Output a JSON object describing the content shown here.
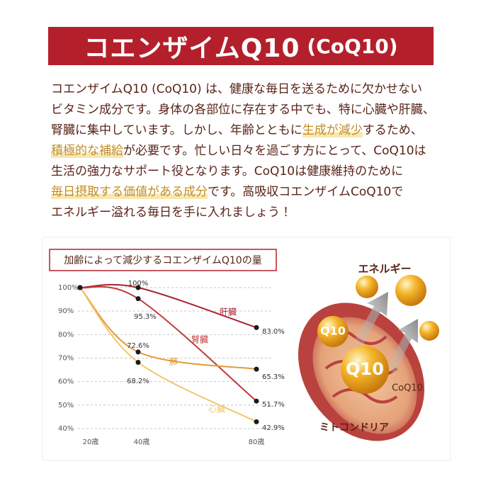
{
  "header": {
    "title": "コエンザイムQ10",
    "subtitle": "(CoQ10)"
  },
  "paragraph": {
    "lines": [
      [
        {
          "text": "コエンザイムQ10 (CoQ10) は、健康な毎日を送るために欠かせない"
        }
      ],
      [
        {
          "text": "ビタミン成分です。身体の各部位に存在する中でも、特に心臓や肝臓、"
        }
      ],
      [
        {
          "text": "腎臓に集中しています。しかし、年齢とともに"
        },
        {
          "text": "生成が減少",
          "emphasis": true
        },
        {
          "text": "するため、"
        }
      ],
      [
        {
          "text": "積極的な補給",
          "emphasis": true
        },
        {
          "text": "が必要です。忙しい日々を過ごす方にとって、CoQ10は"
        }
      ],
      [
        {
          "text": "生活の強力なサポート役となります。CoQ10は健康維持のために"
        }
      ],
      [
        {
          "text": "毎日摂取する価値がある成分",
          "emphasis": true
        },
        {
          "text": "です。高吸収コエンザイムCoQ10で"
        }
      ],
      [
        {
          "text": "エネルギー溢れる毎日を手に入れましょう！"
        }
      ]
    ]
  },
  "chart_data": {
    "type": "line",
    "title": "加齢によって減少するコエンザイムQ10の量",
    "categories": [
      "20歳",
      "40歳",
      "80歳"
    ],
    "ylim": [
      40,
      100
    ],
    "yticks": [
      {
        "value": 40,
        "label": "40%"
      },
      {
        "value": 50,
        "label": "50%"
      },
      {
        "value": 60,
        "label": "60%"
      },
      {
        "value": 70,
        "label": "70%"
      },
      {
        "value": 80,
        "label": "80%"
      },
      {
        "value": 90,
        "label": "90%"
      },
      {
        "value": 100,
        "label": "100%"
      }
    ],
    "grid": true,
    "series": [
      {
        "name": "肝臓",
        "color": "#a8232f",
        "values": [
          100,
          100,
          83.0
        ],
        "value_labels": [
          null,
          "100%",
          "83.0%"
        ]
      },
      {
        "name": "腎臓",
        "color": "#c23a3c",
        "values": [
          100,
          95.3,
          51.7
        ],
        "value_labels": [
          null,
          "95.3%",
          "51.7%"
        ]
      },
      {
        "name": "肺",
        "color": "#e39a3a",
        "values": [
          100,
          72.6,
          65.3
        ],
        "value_labels": [
          null,
          "72.6%",
          "65.3%"
        ]
      },
      {
        "name": "心臓",
        "color": "#f3c66c",
        "values": [
          100,
          68.2,
          42.9
        ],
        "value_labels": [
          null,
          "68.2%",
          "42.9%"
        ]
      }
    ]
  },
  "illustration": {
    "energy": "エネルギー",
    "sphere": "Q10",
    "coq10": "CoQ10",
    "mitochondria": "ミトコンドリア"
  }
}
